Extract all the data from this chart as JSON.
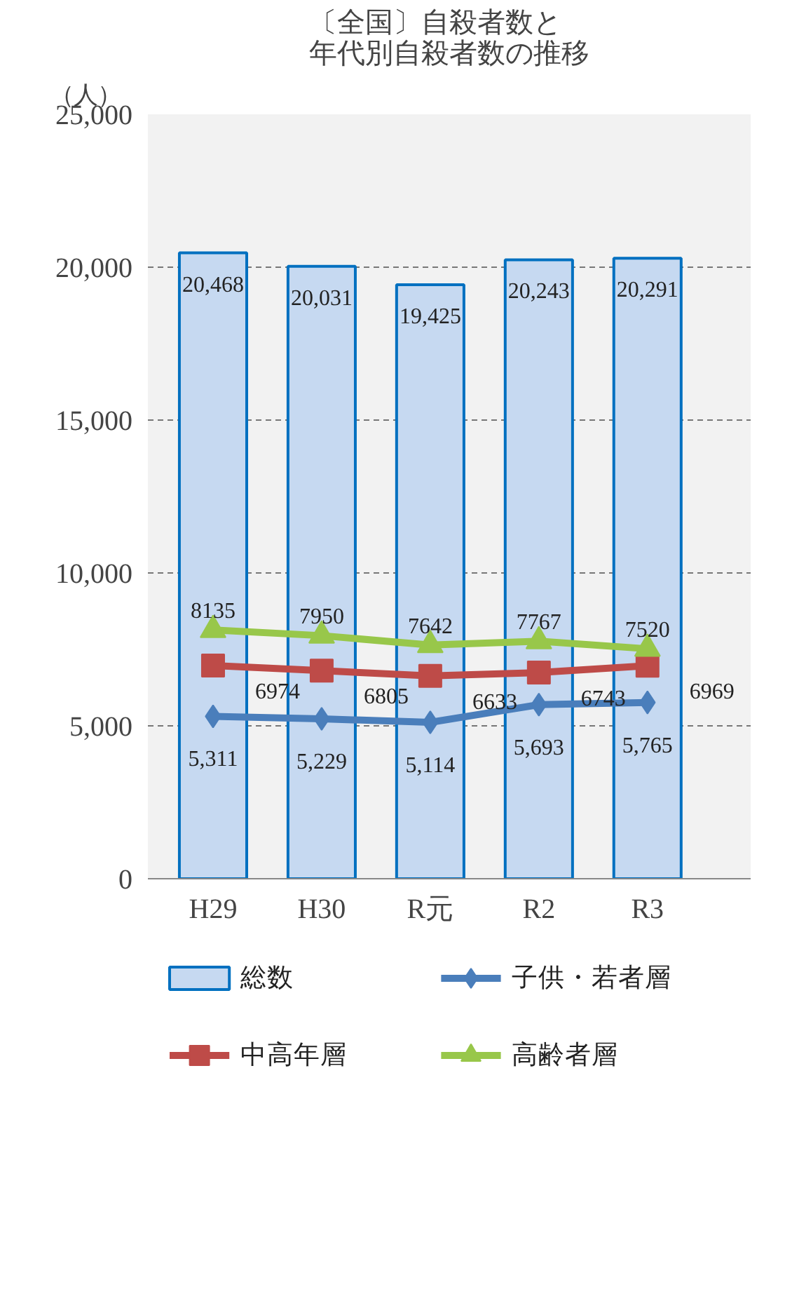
{
  "chart_data": {
    "type": "bar",
    "title": "〔全国〕自殺者数と年代別自殺者数の推移",
    "ylabel": "（人）",
    "categories": [
      "H29",
      "H30",
      "R元",
      "R2",
      "R3"
    ],
    "ylim": [
      0,
      25000
    ],
    "yticks": [
      0,
      {
        "value": 5000,
        "label": "5,000"
      },
      {
        "value": 10000,
        "label": "10,000"
      },
      {
        "value": 15000,
        "label": "15,000"
      },
      {
        "value": 20000,
        "label": "20,000"
      },
      {
        "value": 25000,
        "label": "25,000"
      }
    ],
    "grid": "y",
    "legend": "bottom",
    "series": [
      {
        "name": "総数",
        "color": "#c6d9f1",
        "values": [
          20468,
          20031,
          19425,
          20243,
          20291
        ],
        "value_labels": [
          "20,468",
          "20,031",
          "19,425",
          "20,243",
          "20,291"
        ]
      },
      {
        "name": "子供・若者層",
        "type": "line",
        "marker": "diamond",
        "color": "#4a7ebb",
        "values": [
          5311,
          5229,
          5114,
          5693,
          5765
        ],
        "value_labels": [
          "5,311",
          "5,229",
          "5,114",
          "5,693",
          "5,765"
        ]
      },
      {
        "name": "中高年層",
        "type": "line",
        "marker": "square",
        "color": "#be4b48",
        "values": [
          6974,
          6805,
          6633,
          6743,
          6969
        ],
        "value_labels": [
          "6974",
          "6805",
          "6633",
          "6743",
          "6969"
        ]
      },
      {
        "name": "高齢者層",
        "type": "line",
        "marker": "triangle",
        "color": "#98c74a",
        "values": [
          8135,
          7950,
          7642,
          7767,
          7520
        ],
        "value_labels": [
          "8135",
          "7950",
          "7642",
          "7767",
          "7520"
        ]
      }
    ]
  }
}
